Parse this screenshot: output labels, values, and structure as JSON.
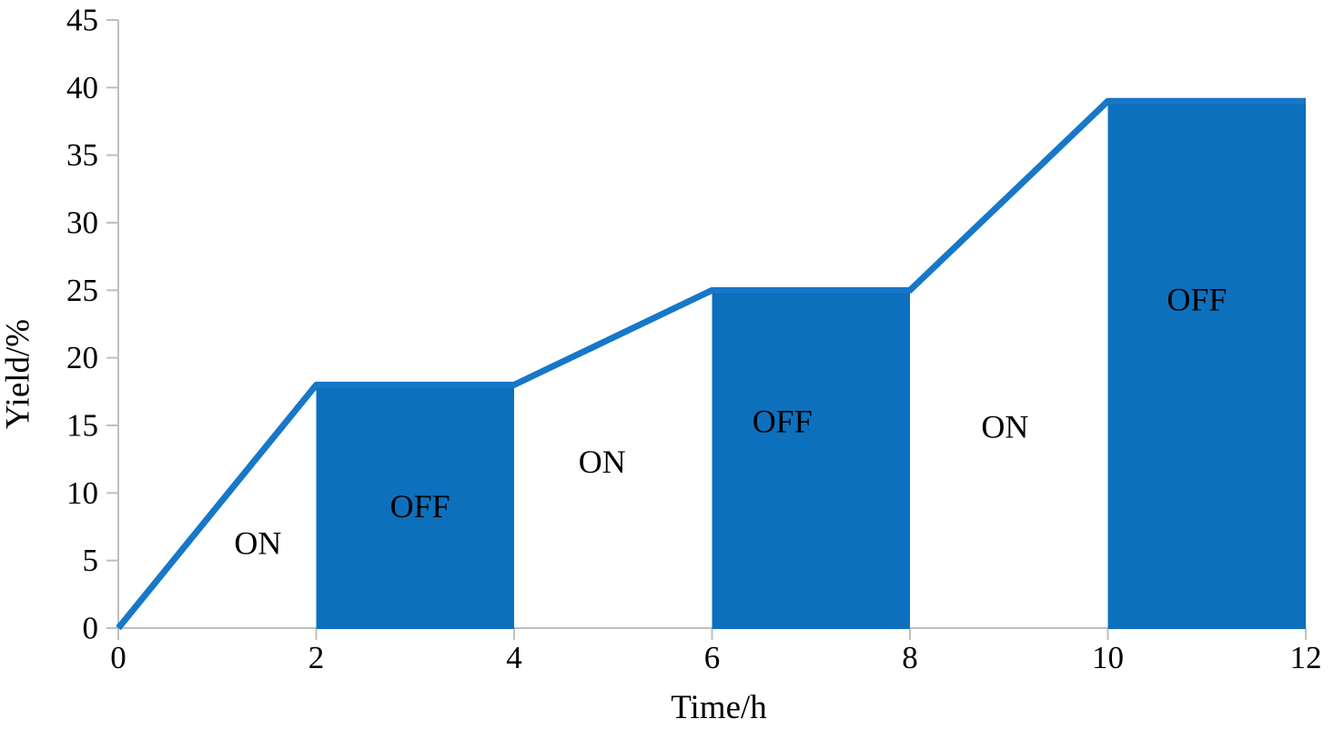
{
  "chart_data": {
    "type": "area",
    "title": "",
    "xlabel": "Time/h",
    "ylabel": "Yield/%",
    "xlim": [
      0,
      12
    ],
    "ylim": [
      0,
      45
    ],
    "x_ticks": [
      0,
      2,
      4,
      6,
      8,
      10,
      12
    ],
    "y_ticks": [
      0,
      5,
      10,
      15,
      20,
      25,
      30,
      35,
      40,
      45
    ],
    "grid": "off",
    "legend": "none",
    "series": [
      {
        "name": "yield-line",
        "type": "line",
        "points": [
          [
            0,
            0
          ],
          [
            2,
            18
          ],
          [
            4,
            18
          ],
          [
            6,
            25
          ],
          [
            8,
            25
          ],
          [
            10,
            39
          ],
          [
            12,
            39
          ]
        ]
      }
    ],
    "off_bars": [
      {
        "x0": 2,
        "x1": 4,
        "height": 18
      },
      {
        "x0": 6,
        "x1": 8,
        "height": 25
      },
      {
        "x0": 10,
        "x1": 12,
        "height": 39
      }
    ],
    "region_labels": [
      {
        "text": "ON",
        "t": 1.41,
        "y": 6.3
      },
      {
        "text": "OFF",
        "t": 3.05,
        "y": 9.0
      },
      {
        "text": "ON",
        "t": 4.89,
        "y": 12.3
      },
      {
        "text": "OFF",
        "t": 6.71,
        "y": 15.3
      },
      {
        "text": "ON",
        "t": 8.96,
        "y": 14.9
      },
      {
        "text": "OFF",
        "t": 10.9,
        "y": 24.3
      }
    ],
    "colors": {
      "bar_fill": "#0D70BD",
      "line": "#1777C8",
      "axis": "#BFBFBF",
      "text": "#000000"
    }
  }
}
